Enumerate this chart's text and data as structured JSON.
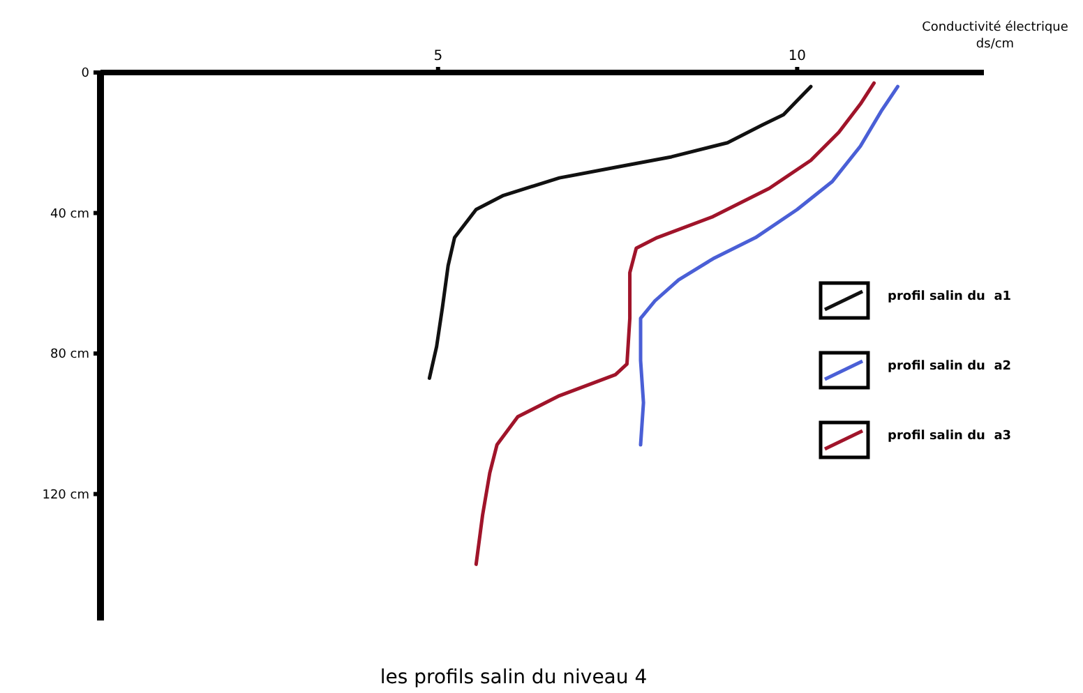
{
  "chart_data": {
    "type": "line",
    "title": "les profils salin du niveau 4",
    "xlabel": "Conductivité électrique\nds/cm",
    "xlim": [
      0.3,
      12.6
    ],
    "xticks": [
      5,
      10
    ],
    "ylim": [
      156,
      0
    ],
    "yticks": [
      0,
      {
        "value": 40,
        "label": "40 cm"
      },
      {
        "value": 80,
        "label": "80 cm"
      },
      {
        "value": 120,
        "label": "120 cm"
      }
    ],
    "legend": "right",
    "grid": false,
    "marker": "none",
    "line_style": "solid",
    "series": [
      {
        "name": "profil salin du  a1",
        "color": "#111111",
        "x": [
          10.19,
          10.0,
          9.81,
          9.51,
          9.03,
          8.25,
          7.47,
          6.69,
          5.91,
          5.53,
          5.23,
          5.14,
          5.06,
          4.98,
          4.88
        ],
        "values": [
          4,
          8,
          12,
          15,
          20,
          24,
          27,
          30,
          35,
          39,
          47,
          55,
          67,
          78,
          87
        ]
      },
      {
        "name": "profil salin du  a2",
        "color": "#4a5fd6",
        "x": [
          11.4,
          11.17,
          10.88,
          10.49,
          10.0,
          9.42,
          8.83,
          8.35,
          8.02,
          7.82,
          7.82,
          7.86,
          7.82
        ],
        "values": [
          4,
          11,
          21,
          31,
          39,
          47,
          53,
          59,
          65,
          70,
          82,
          94,
          106
        ]
      },
      {
        "name": "profil salin du  a3",
        "color": "#a0142a",
        "x": [
          11.07,
          10.88,
          10.58,
          10.19,
          9.61,
          8.83,
          8.05,
          7.76,
          7.67,
          7.67,
          7.63,
          7.47,
          6.69,
          6.11,
          5.82,
          5.72,
          5.62,
          5.53
        ],
        "values": [
          3,
          9,
          17,
          25,
          33,
          41,
          47,
          50,
          57,
          70,
          83,
          86,
          92,
          98,
          106,
          114,
          126,
          140
        ]
      }
    ]
  }
}
